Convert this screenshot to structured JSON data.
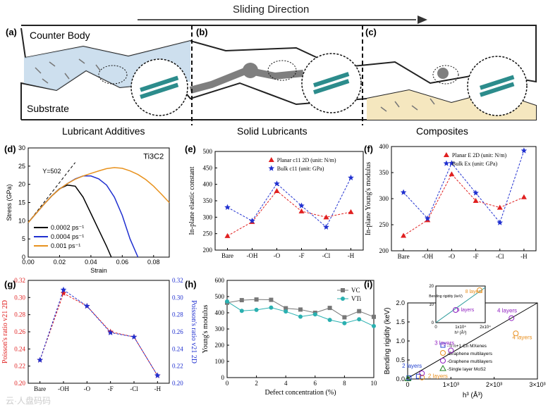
{
  "header": {
    "sliding_direction": "Sliding Direction"
  },
  "schematic": {
    "labels": {
      "a": "(a)",
      "b": "(b)",
      "c": "(c)"
    },
    "counter_body": "Counter Body",
    "substrate": "Substrate",
    "captions": [
      "Lubricant Additives",
      "Solid Lubricants",
      "Composites"
    ],
    "colors": {
      "lubricant": "#c8dcec",
      "composite": "#f5e7bf",
      "solid": "#7f7f7f"
    }
  },
  "panel_labels": {
    "d": "(d)",
    "e": "(e)",
    "f": "(f)",
    "g": "(g)",
    "h": "(h)",
    "i": "(i)"
  },
  "chart_data": [
    {
      "id": "d",
      "type": "line",
      "annotation_material": "Ti3C2",
      "annotation_modulus": "Y=502",
      "xlabel": "Strain",
      "ylabel": "Stress (GPa)",
      "xlim": [
        0,
        0.09
      ],
      "ylim": [
        0,
        30
      ],
      "xticks": [
        "0.00",
        "0.02",
        "0.04",
        "0.06",
        "0.08"
      ],
      "yticks": [
        "0",
        "5",
        "10",
        "15",
        "20",
        "25",
        "30"
      ],
      "series": [
        {
          "name": "0.0002 ps⁻¹",
          "color": "#000000",
          "x": [
            0,
            0.005,
            0.01,
            0.015,
            0.02,
            0.025,
            0.03,
            0.035,
            0.04,
            0.045,
            0.05,
            0.053
          ],
          "y": [
            9.5,
            12,
            14.5,
            16.8,
            18.8,
            19.8,
            19.5,
            16.5,
            12,
            7.5,
            3,
            0
          ]
        },
        {
          "name": "0.0004 ps⁻¹",
          "color": "#1f2fd0",
          "x": [
            0,
            0.005,
            0.01,
            0.015,
            0.02,
            0.025,
            0.03,
            0.035,
            0.04,
            0.045,
            0.05,
            0.055,
            0.06,
            0.065,
            0.07
          ],
          "y": [
            9.5,
            12,
            14.5,
            16.8,
            18.7,
            20.2,
            21.5,
            22.3,
            22.3,
            21.5,
            19.8,
            16.5,
            11.5,
            5,
            0
          ]
        },
        {
          "name": "0.001 ps⁻¹",
          "color": "#e8921e",
          "x": [
            0,
            0.005,
            0.01,
            0.015,
            0.02,
            0.025,
            0.03,
            0.035,
            0.04,
            0.045,
            0.05,
            0.055,
            0.06,
            0.065,
            0.07,
            0.075,
            0.08,
            0.085,
            0.09
          ],
          "y": [
            9.5,
            12,
            14.5,
            16.8,
            18.7,
            20.2,
            21.4,
            22.3,
            23,
            23.7,
            24.3,
            24.6,
            24.4,
            23.7,
            22.7,
            21.3,
            19.5,
            17.3,
            15
          ]
        }
      ]
    },
    {
      "id": "e",
      "type": "line",
      "ylabel": "In-plane elastic constant",
      "categories": [
        "Bare",
        "-OH",
        "-O",
        "-F",
        "-Cl",
        "-H"
      ],
      "ylim": [
        200,
        500
      ],
      "yticks": [
        "200",
        "250",
        "300",
        "350",
        "400",
        "450",
        "500"
      ],
      "series": [
        {
          "name": "Planar c11 2D (unit: N/m)",
          "color": "#e02020",
          "marker": "triangle",
          "values": [
            243,
            286,
            380,
            318,
            300,
            316
          ]
        },
        {
          "name": "Bulk c11 (unit: GPa)",
          "color": "#2030d0",
          "marker": "star",
          "values": [
            330,
            289,
            402,
            335,
            270,
            420
          ]
        }
      ]
    },
    {
      "id": "f",
      "type": "line",
      "ylabel": "In-plane Young's modulus",
      "categories": [
        "Bare",
        "-OH",
        "-O",
        "-F",
        "-Cl",
        "-H"
      ],
      "ylim": [
        200,
        400
      ],
      "yticks": [
        "200",
        "250",
        "300",
        "350",
        "400"
      ],
      "series": [
        {
          "name": "Planar E 2D (unit: N/m)",
          "color": "#e02020",
          "marker": "triangle",
          "values": [
            229,
            259,
            347,
            296,
            283,
            303
          ]
        },
        {
          "name": "Bulk Ex (unit: GPa)",
          "color": "#2030d0",
          "marker": "star",
          "values": [
            312,
            262,
            368,
            311,
            254,
            392
          ]
        }
      ]
    },
    {
      "id": "g",
      "type": "line",
      "ylabel_left": "Poisson's ratio v21 2D",
      "ylabel_right": "Poisson's ratio v21 2D",
      "categories": [
        "Bare",
        "-OH",
        "-O",
        "-F",
        "-Cl",
        "-H"
      ],
      "ylim": [
        0.2,
        0.32
      ],
      "yticks": [
        "0.20",
        "0.22",
        "0.24",
        "0.26",
        "0.28",
        "0.30",
        "0.32"
      ],
      "yticks_right": [
        "0.20",
        "0.22",
        "0.24",
        "0.26",
        "0.28",
        "0.30",
        "0.32"
      ],
      "series": [
        {
          "name": "left",
          "color": "#e02020",
          "values": [
            0.227,
            0.305,
            0.29,
            0.26,
            0.254,
            0.209
          ]
        },
        {
          "name": "right",
          "color": "#2030d0",
          "values": [
            0.227,
            0.309,
            0.29,
            0.259,
            0.254,
            0.209
          ]
        }
      ]
    },
    {
      "id": "h",
      "type": "line",
      "xlabel": "Defect concentration (%)",
      "ylabel": "Young's modulus",
      "xlim": [
        0,
        10
      ],
      "ylim": [
        0,
        600
      ],
      "xticks": [
        "0",
        "2",
        "4",
        "6",
        "8",
        "10"
      ],
      "yticks": [
        "0",
        "100",
        "200",
        "300",
        "400",
        "500",
        "600"
      ],
      "series": [
        {
          "name": "VC",
          "color": "#777777",
          "marker": "square",
          "x": [
            0,
            1,
            2,
            3,
            4,
            5,
            6,
            7,
            8,
            9,
            10
          ],
          "values": [
            462,
            478,
            482,
            480,
            428,
            420,
            400,
            430,
            372,
            410,
            375
          ]
        },
        {
          "name": "VTi",
          "color": "#2ab0b0",
          "marker": "circle",
          "x": [
            0,
            1,
            2,
            3,
            4,
            5,
            6,
            7,
            8,
            9,
            10
          ],
          "values": [
            470,
            412,
            418,
            432,
            408,
            376,
            390,
            356,
            336,
            360,
            318
          ]
        }
      ]
    },
    {
      "id": "i",
      "type": "scatter",
      "xlabel": "h³ (Å³)",
      "ylabel": "Bending rigidity (keV)",
      "xlim": [
        0,
        3000
      ],
      "ylim": [
        0,
        2
      ],
      "xticks": [
        "0",
        "1×10³",
        "2×10³",
        "3×10³"
      ],
      "yticks": [
        "0.0",
        "0.5",
        "1.0",
        "1.5",
        "2.0"
      ],
      "fit_line": {
        "x": [
          0,
          3000
        ],
        "y": [
          0.02,
          2.0
        ]
      },
      "point_labels": [
        "2 layers",
        "2 layers",
        "3 layers",
        "4 layers",
        "4 layers"
      ],
      "series": [
        {
          "name": "-Ti n+1 Cn MXenes",
          "color": "#2040d0",
          "marker": "square",
          "x": [
            30,
            250
          ],
          "y": [
            0.03,
            0.07
          ]
        },
        {
          "name": "-Graphene multilayers",
          "color": "#e89020",
          "marker": "circle",
          "x": [
            330,
            2500
          ],
          "y": [
            0.04,
            1.2
          ]
        },
        {
          "name": "-Graphene multilayers",
          "color": "#9020c0",
          "marker": "circle",
          "x": [
            330,
            1000,
            2400
          ],
          "y": [
            0.15,
            0.75,
            1.6
          ]
        },
        {
          "name": "-Single layer MoS2",
          "color": "#208020",
          "marker": "triangle",
          "x": [
            5
          ],
          "y": [
            0.01
          ]
        }
      ],
      "inset": {
        "xlabel": "h³ (Å³)",
        "ylabel": "Bending rigidity (keV)",
        "xticks": [
          "0",
          "1x10⁴",
          "2x10⁴"
        ],
        "yticks": [
          "0",
          "10",
          "20"
        ],
        "labels": [
          "8 layers",
          "5 layers"
        ]
      }
    }
  ],
  "watermark": "云·人盘码码"
}
